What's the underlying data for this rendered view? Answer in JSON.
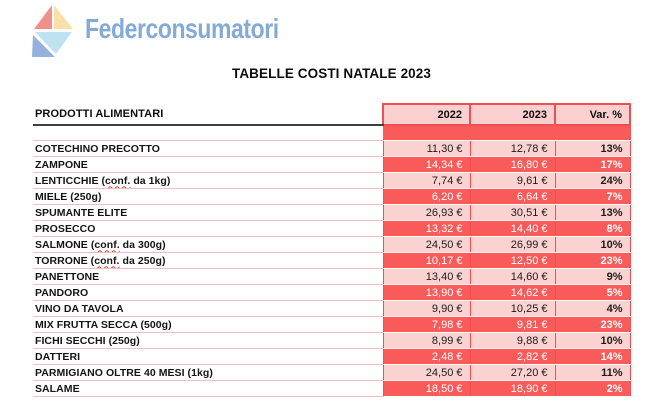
{
  "logo": {
    "brand": "Federconsumatori",
    "wordmark_color": "#84AAD6",
    "icon_colors": {
      "triangle_red": "#F0908D",
      "triangle_peach": "#FADFA9",
      "triangle_light_blue": "#BFE2F0",
      "triangle_steel_blue": "#94B2DB"
    }
  },
  "title": "TABELLE COSTI NATALE 2023",
  "table": {
    "product_header": "PRODOTTI ALIMENTARI",
    "columns": [
      "2022",
      "2023",
      "Var. %"
    ],
    "colors": {
      "highlight_row_red": "#F95B5B",
      "row_pink": "#FBD2D2",
      "header_pink": "#FACFCF",
      "grid_red": "#F14F4F",
      "separator_pink": "#F6BCBC",
      "spellcheck_underline_red": "#E03C3C"
    },
    "rows": [
      {
        "product": "COTECHINO PRECOTTO",
        "price_2022": "11,30 €",
        "price_2023": "12,78 €",
        "var_pct": "13%",
        "highlight": false
      },
      {
        "product": "ZAMPONE",
        "price_2022": "14,34 €",
        "price_2023": "16,80 €",
        "var_pct": "17%",
        "highlight": true
      },
      {
        "product": "LENTICCHIE (conf. da 1kg)",
        "price_2022": "7,74 €",
        "price_2023": "9,61 €",
        "var_pct": "24%",
        "highlight": false
      },
      {
        "product": "MIELE (250g)",
        "price_2022": "6,20 €",
        "price_2023": "6,64 €",
        "var_pct": "7%",
        "highlight": true
      },
      {
        "product": "SPUMANTE ELITE",
        "price_2022": "26,93 €",
        "price_2023": "30,51 €",
        "var_pct": "13%",
        "highlight": false
      },
      {
        "product": "PROSECCO",
        "price_2022": "13,32 €",
        "price_2023": "14,40 €",
        "var_pct": "8%",
        "highlight": true
      },
      {
        "product": "SALMONE (conf. da 300g)",
        "price_2022": "24,50 €",
        "price_2023": "26,99 €",
        "var_pct": "10%",
        "highlight": false
      },
      {
        "product": "TORRONE (conf. da 250g)",
        "price_2022": "10,17 €",
        "price_2023": "12,50 €",
        "var_pct": "23%",
        "highlight": true
      },
      {
        "product": "PANETTONE",
        "price_2022": "13,40 €",
        "price_2023": "14,60 €",
        "var_pct": "9%",
        "highlight": false
      },
      {
        "product": "PANDORO",
        "price_2022": "13,90 €",
        "price_2023": "14,62 €",
        "var_pct": "5%",
        "highlight": true
      },
      {
        "product": "VINO DA TAVOLA",
        "price_2022": "9,90 €",
        "price_2023": "10,25 €",
        "var_pct": "4%",
        "highlight": false
      },
      {
        "product": "MIX FRUTTA SECCA (500g)",
        "price_2022": "7,98 €",
        "price_2023": "9,81 €",
        "var_pct": "23%",
        "highlight": true
      },
      {
        "product": "FICHI SECCHI (250g)",
        "price_2022": "8,99 €",
        "price_2023": "9,88 €",
        "var_pct": "10%",
        "highlight": false
      },
      {
        "product": "DATTERI",
        "price_2022": "2,48 €",
        "price_2023": "2,82 €",
        "var_pct": "14%",
        "highlight": true
      },
      {
        "product": "PARMIGIANO OLTRE 40 MESI (1kg)",
        "price_2022": "24,50 €",
        "price_2023": "27,20 €",
        "var_pct": "11%",
        "highlight": false
      },
      {
        "product": "SALAME",
        "price_2022": "18,50 €",
        "price_2023": "18,90 €",
        "var_pct": "2%",
        "highlight": true
      }
    ]
  }
}
